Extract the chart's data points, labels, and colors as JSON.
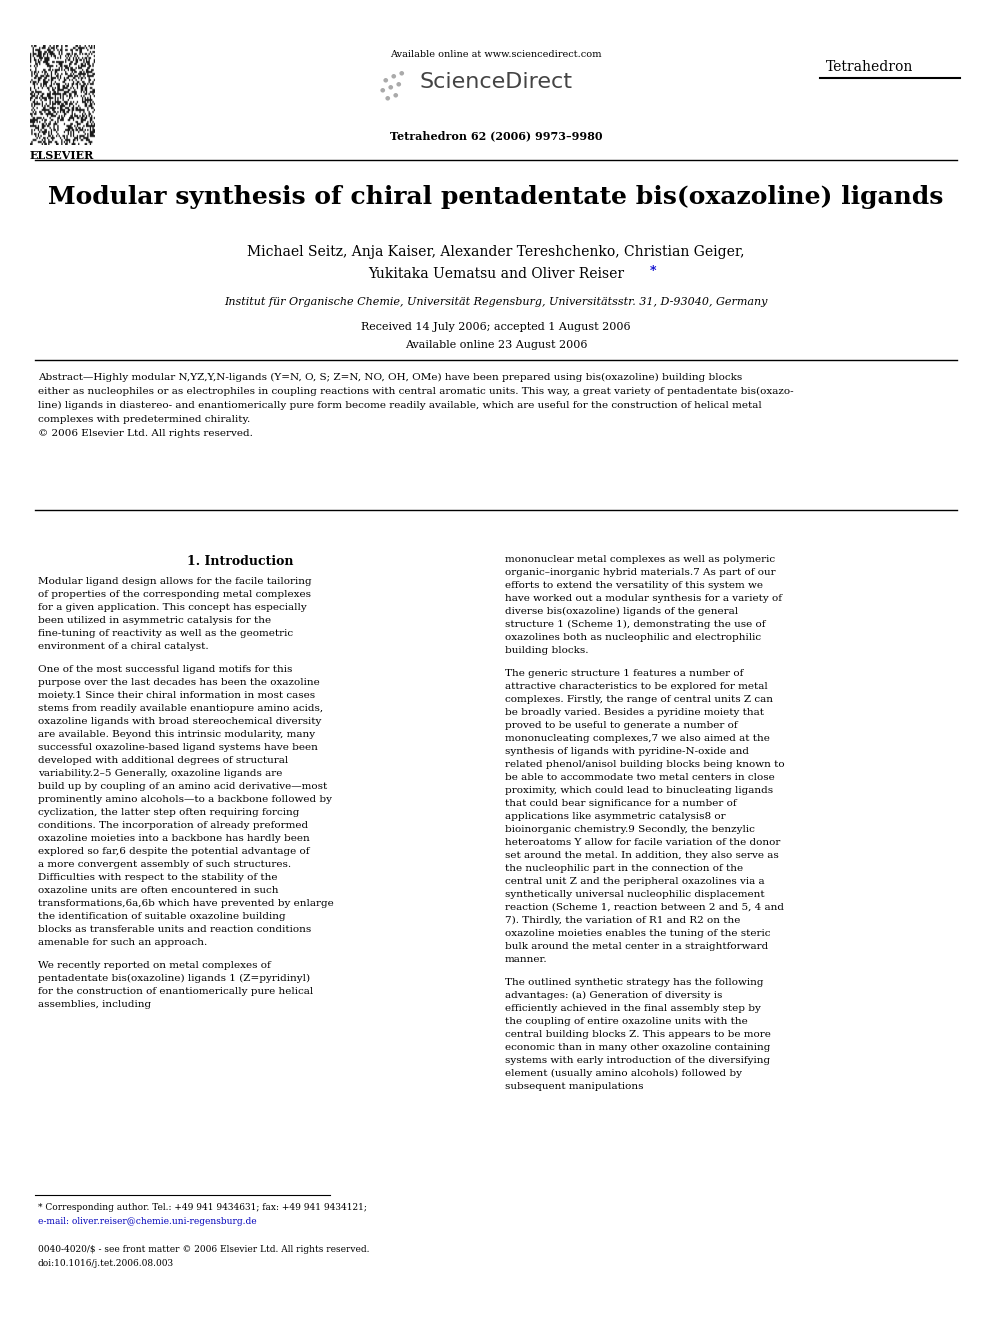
{
  "bg_color": "#ffffff",
  "page_width": 9.92,
  "page_height": 13.23,
  "title": "Modular synthesis of chiral pentadentate bis(oxazoline) ligands",
  "authors_line1": "Michael Seitz, Anja Kaiser, Alexander Tereshchenko, Christian Geiger,",
  "authors_line2": "Yukitaka Uematsu and Oliver Reiser",
  "affiliation": "Institut für Organische Chemie, Universität Regensburg, Universitätsstr. 31, D-93040, Germany",
  "received": "Received 14 July 2006; accepted 1 August 2006",
  "available": "Available online 23 August 2006",
  "section1_title": "1. Introduction",
  "abs_line1": "Abstract—Highly modular N,YZ,Y,N-ligands (Y=N, O, S; Z=N, NO, OH, OMe) have been prepared using bis(oxazoline) building blocks",
  "abs_line2": "either as nucleophiles or as electrophiles in coupling reactions with central aromatic units. This way, a great variety of pentadentate bis(oxazo-",
  "abs_line3": "line) ligands in diastereo- and enantiomerically pure form become readily available, which are useful for the construction of helical metal",
  "abs_line4": "complexes with predetermined chirality.",
  "abs_line5": "© 2006 Elsevier Ltd. All rights reserved.",
  "col1_para1": "Modular ligand design allows for the facile tailoring of properties of the corresponding metal complexes for a given application. This concept has especially been utilized in asymmetric catalysis for the fine-tuning of reactivity as well as the geometric environment of a chiral catalyst.",
  "col1_para2": "One of the most successful ligand motifs for this purpose over the last decades has been the oxazoline moiety.1 Since their chiral information in most cases stems from readily available enantiopure amino acids, oxazoline ligands with broad stereochemical diversity are available. Beyond this intrinsic modularity, many successful oxazoline-based ligand systems have been developed with additional degrees of structural variability.2–5 Generally, oxazoline ligands are build up by coupling of an amino acid derivative—most prominently amino alcohols—to a backbone followed by cyclization, the latter step often requiring forcing conditions. The incorporation of already preformed oxazoline moieties into a backbone has hardly been explored so far,6 despite the potential advantage of a more convergent assembly of such structures. Difficulties with respect to the stability of the oxazoline units are often encountered in such transformations,6a,6b which have prevented by enlarge the identification of suitable oxazoline building blocks as transferable units and reaction conditions amenable for such an approach.",
  "col1_para3": "We recently reported on metal complexes of pentadentate bis(oxazoline) ligands 1 (Z=pyridinyl) for the construction of enantiomerically pure helical assemblies, including",
  "col2_start_text": "mononuclear metal complexes as well as polymeric organic–inorganic hybrid materials.7 As part of our efforts to extend the versatility of this system we have worked out a modular synthesis for a variety of diverse bis(oxazoline) ligands of the general structure 1 (Scheme 1), demonstrating the use of oxazolines both as nucleophilic and electrophilic building blocks.",
  "col2_para2": "The generic structure 1 features a number of attractive characteristics to be explored for metal complexes. Firstly, the range of central units Z can be broadly varied. Besides a pyridine moiety that proved to be useful to generate a number of mononucleating complexes,7 we also aimed at the synthesis of ligands with pyridine-N-oxide and related phenol/anisol building blocks being known to be able to accommodate two metal centers in close proximity, which could lead to binucleating ligands that could bear significance for a number of applications like asymmetric catalysis8 or bioinorganic chemistry.9 Secondly, the benzylic heteroatoms Y allow for facile variation of the donor set around the metal. In addition, they also serve as the nucleophilic part in the connection of the central unit Z and the peripheral oxazolines via a synthetically universal nucleophilic displacement reaction (Scheme 1, reaction between 2 and 5, 4 and 7). Thirdly, the variation of R1 and R2 on the oxazoline moieties enables the tuning of the steric bulk around the metal center in a straightforward manner.",
  "col2_para3": "The outlined synthetic strategy has the following advantages: (a) Generation of diversity is efficiently achieved in the final assembly step by the coupling of entire oxazoline units with the central building blocks Z. This appears to be more economic than in many other oxazoline containing systems with early introduction of the diversifying element (usually amino alcohols) followed by subsequent manipulations",
  "fn1": "* Corresponding author. Tel.: +49 941 9434631; fax: +49 941 9434121;",
  "fn2": "e-mail: oliver.reiser@chemie.uni-regensburg.de",
  "fn3": "0040-4020/$ - see front matter © 2006 Elsevier Ltd. All rights reserved.",
  "fn4": "doi:10.1016/j.tet.2006.08.003",
  "available_online": "Available online at www.sciencedirect.com",
  "sciencedirect": "ScienceDirect",
  "tetrahedron_header": "Tetrahedron",
  "journal_ref": "Tetrahedron 62 (2006) 9973–9980",
  "elsevier_label": "ELSEVIER"
}
